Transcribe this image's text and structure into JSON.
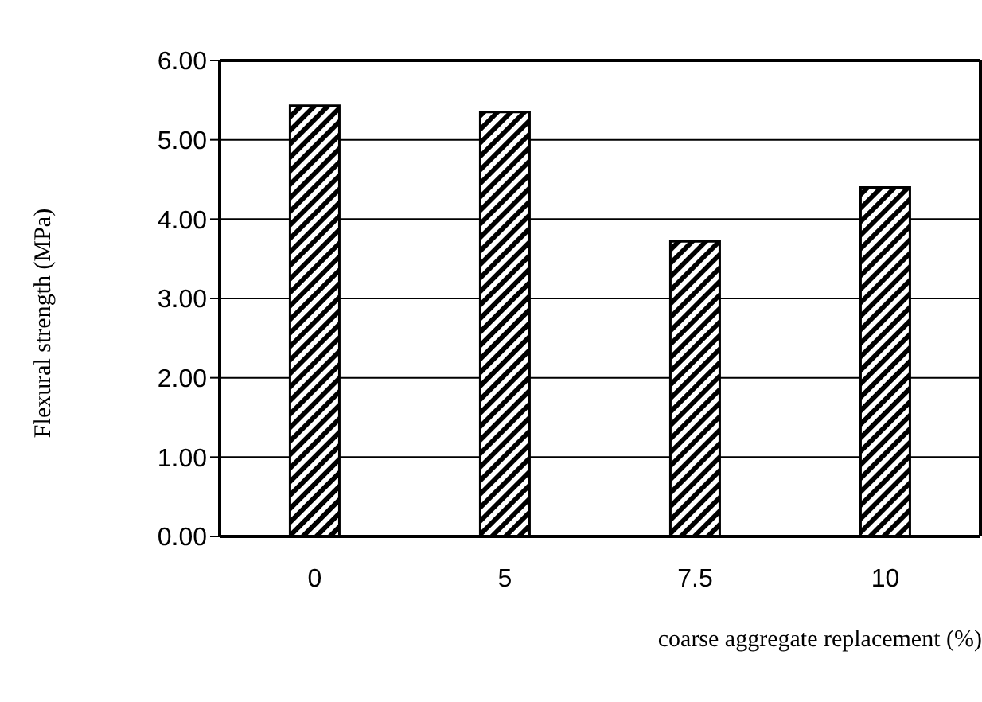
{
  "chart_data": {
    "type": "bar",
    "xlabel": "coarse aggregate replacement (%)",
    "ylabel": "Flexural strength (MPa)",
    "categories": [
      "0",
      "5",
      "7.5",
      "10"
    ],
    "values": [
      5.43,
      5.35,
      3.72,
      4.4
    ],
    "color": "#000000",
    "ylim": [
      0,
      6
    ],
    "yticks": [
      {
        "value": 0,
        "label": "0.00"
      },
      {
        "value": 1,
        "label": "1.00"
      },
      {
        "value": 2,
        "label": "2.00"
      },
      {
        "value": 3,
        "label": "3.00"
      },
      {
        "value": 4,
        "label": "4.00"
      },
      {
        "value": 5,
        "label": "5.00"
      },
      {
        "value": 6,
        "label": "6.00"
      }
    ],
    "grid": "y",
    "legend": false
  }
}
